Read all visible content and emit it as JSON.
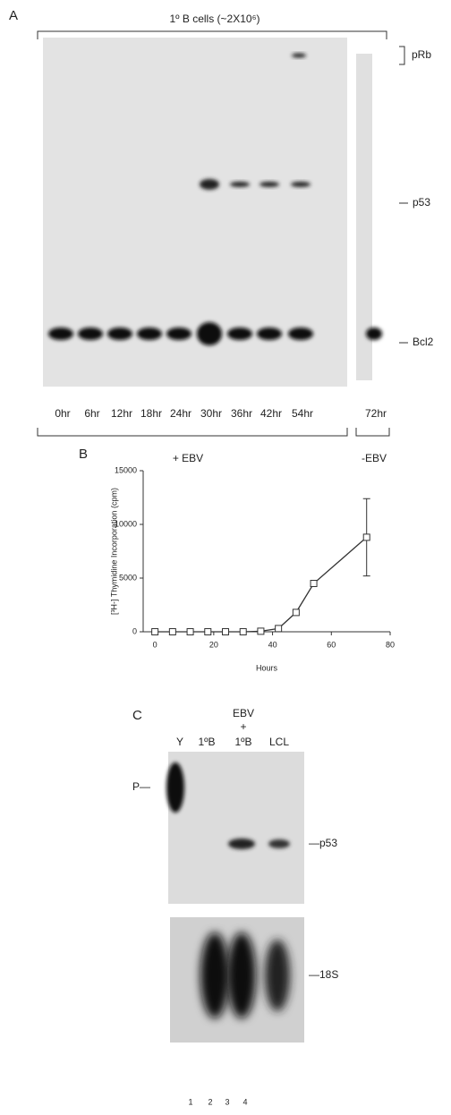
{
  "panel_a": {
    "label": "A",
    "header": "1º B cells (~2X10⁶)",
    "lanes": [
      "0hr",
      "6hr",
      "12hr",
      "18hr",
      "24hr",
      "30hr",
      "36hr",
      "42hr",
      "54hr",
      "72hr"
    ],
    "bands": [
      "pRb",
      "p53",
      "Bcl2"
    ],
    "groups": [
      "+ EBV",
      "-EBV"
    ]
  },
  "chart_data": {
    "type": "line",
    "label": "B",
    "y_label": "[³H-] Thymidine Incorporation (cpm)",
    "x_label": "Hours",
    "x": [
      0,
      6,
      12,
      18,
      24,
      30,
      36,
      42,
      48,
      54,
      72
    ],
    "series": [
      {
        "color": "#333333",
        "values": [
          0,
          0,
          0,
          0,
          0,
          0,
          50,
          300,
          1800,
          4500,
          8800
        ],
        "errors": [
          null,
          null,
          null,
          null,
          null,
          null,
          null,
          null,
          null,
          null,
          3600
        ]
      }
    ],
    "xlim": [
      -4,
      80
    ],
    "ylim": [
      0,
      15000
    ],
    "xticks": [
      0,
      20,
      40,
      60,
      80
    ],
    "yticks": [
      0,
      5000,
      10000,
      15000
    ]
  },
  "panel_c": {
    "label": "C",
    "columns": [
      "Y",
      "1ºB",
      "EBV",
      "+",
      "1ºB",
      "LCL"
    ],
    "markers": [
      "P—",
      "—p53",
      "—18S"
    ],
    "lane_numbers": [
      "1",
      "2",
      "3",
      "4"
    ]
  }
}
